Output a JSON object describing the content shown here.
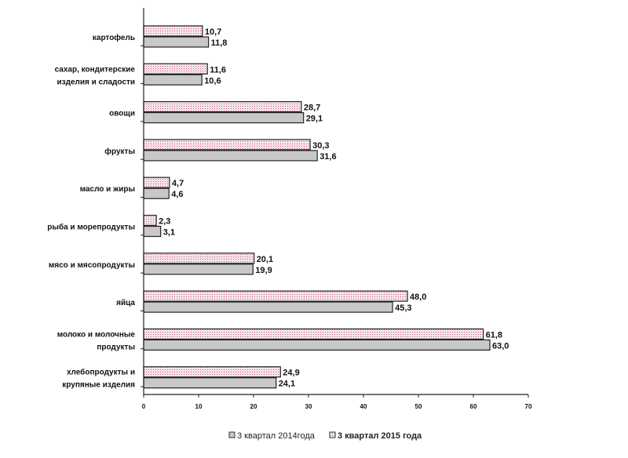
{
  "chart_data": {
    "type": "bar",
    "orientation": "horizontal",
    "title": "",
    "xlabel": "",
    "ylabel": "",
    "xlim": [
      0,
      70
    ],
    "xticks": [
      0,
      10,
      20,
      30,
      40,
      50,
      60,
      70
    ],
    "grid": false,
    "legend_position": "bottom",
    "categories": [
      [
        "картофель"
      ],
      [
        "сахар, кондитерские",
        "изделия и сладости"
      ],
      [
        "овощи"
      ],
      [
        "фрукты"
      ],
      [
        "масло и жиры"
      ],
      [
        "рыба и морепродукты"
      ],
      [
        "мясо и мясопродукты"
      ],
      [
        "яйца"
      ],
      [
        "молоко и молочные",
        "продукты"
      ],
      [
        "хлебопродукты и",
        "крупяные изделия"
      ]
    ],
    "series": [
      {
        "name": "3 квартал 2015 года",
        "color": "#f3d7df",
        "pattern": "dotted",
        "values": [
          10.7,
          11.6,
          28.7,
          30.3,
          4.7,
          2.3,
          20.1,
          48.0,
          61.8,
          24.9
        ],
        "labels": [
          "10,7",
          "11,6",
          "28,7",
          "30,3",
          "4,7",
          "2,3",
          "20,1",
          "48,0",
          "61,8",
          "24,9"
        ]
      },
      {
        "name": "3 квартал 2014года",
        "color": "#c8c8c8",
        "pattern": "solid",
        "values": [
          11.8,
          10.6,
          29.1,
          31.6,
          4.6,
          3.1,
          19.9,
          45.3,
          63.0,
          24.1
        ],
        "labels": [
          "11,8",
          "10,6",
          "29,1",
          "31,6",
          "4,6",
          "3,1",
          "19,9",
          "45,3",
          "63,0",
          "24,1"
        ]
      }
    ]
  }
}
